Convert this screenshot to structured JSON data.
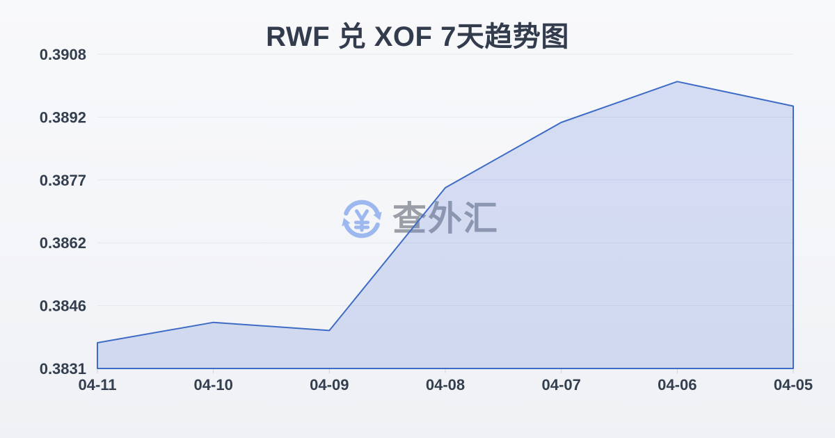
{
  "watermark": {
    "text": "查外汇",
    "icon": "currency-exchange-icon",
    "icon_color": "#9db8ef",
    "text_color": "#9a9fa7"
  },
  "chart_data": {
    "type": "area",
    "title": "RWF 兑 XOF 7天趋势图",
    "categories": [
      "04-11",
      "04-10",
      "04-09",
      "04-08",
      "04-07",
      "04-06",
      "04-05"
    ],
    "series": [
      {
        "name": "RWF/XOF",
        "values": [
          0.3837,
          0.3842,
          0.384,
          0.3875,
          0.3891,
          0.3901,
          0.3895
        ]
      }
    ],
    "y_ticks": [
      {
        "label": "0.3908",
        "value": 0.39077
      },
      {
        "label": "0.3892",
        "value": 0.38923
      },
      {
        "label": "0.3877",
        "value": 0.38769
      },
      {
        "label": "0.3862",
        "value": 0.38615
      },
      {
        "label": "0.3846",
        "value": 0.38461
      },
      {
        "label": "0.3831",
        "value": 0.38307
      }
    ],
    "ylim": [
      0.38307,
      0.39077
    ],
    "xlabel": "",
    "ylabel": "",
    "grid": true,
    "legend_position": "none",
    "colors": {
      "line": "#3e6bc5",
      "fill": "rgba(80,114,214,0.20)",
      "grid": "#e4e7eb",
      "tick": "#ccd1d8",
      "label": "#333e4e",
      "title": "#323c4d"
    }
  }
}
